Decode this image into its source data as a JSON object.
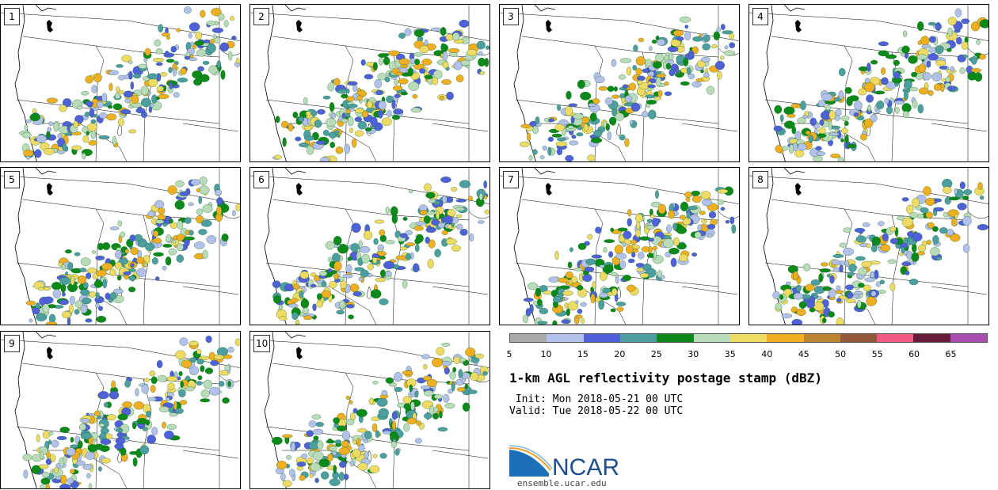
{
  "panels": [
    "1",
    "2",
    "3",
    "4",
    "5",
    "6",
    "7",
    "8",
    "9",
    "10"
  ],
  "colorbar": {
    "colors": [
      "#a9a9a9",
      "#b4c0ec",
      "#5060d8",
      "#4c9ea0",
      "#0b8a1a",
      "#b9dbb9",
      "#efdb63",
      "#f0ae22",
      "#bb8433",
      "#915939",
      "#f05a83",
      "#6a1a3b",
      "#a94eae"
    ],
    "ticks": [
      "5",
      "10",
      "15",
      "20",
      "25",
      "30",
      "35",
      "40",
      "45",
      "50",
      "55",
      "60",
      "65"
    ]
  },
  "title": "1-km AGL reflectivity postage stamp (dBZ)",
  "init": " Init: Mon 2018-05-21 00 UTC",
  "valid": "Valid: Tue 2018-05-22 00 UTC",
  "logo": {
    "text": "NCAR",
    "url": "ensemble.ucar.edu",
    "color": "#1d6fb8"
  }
}
